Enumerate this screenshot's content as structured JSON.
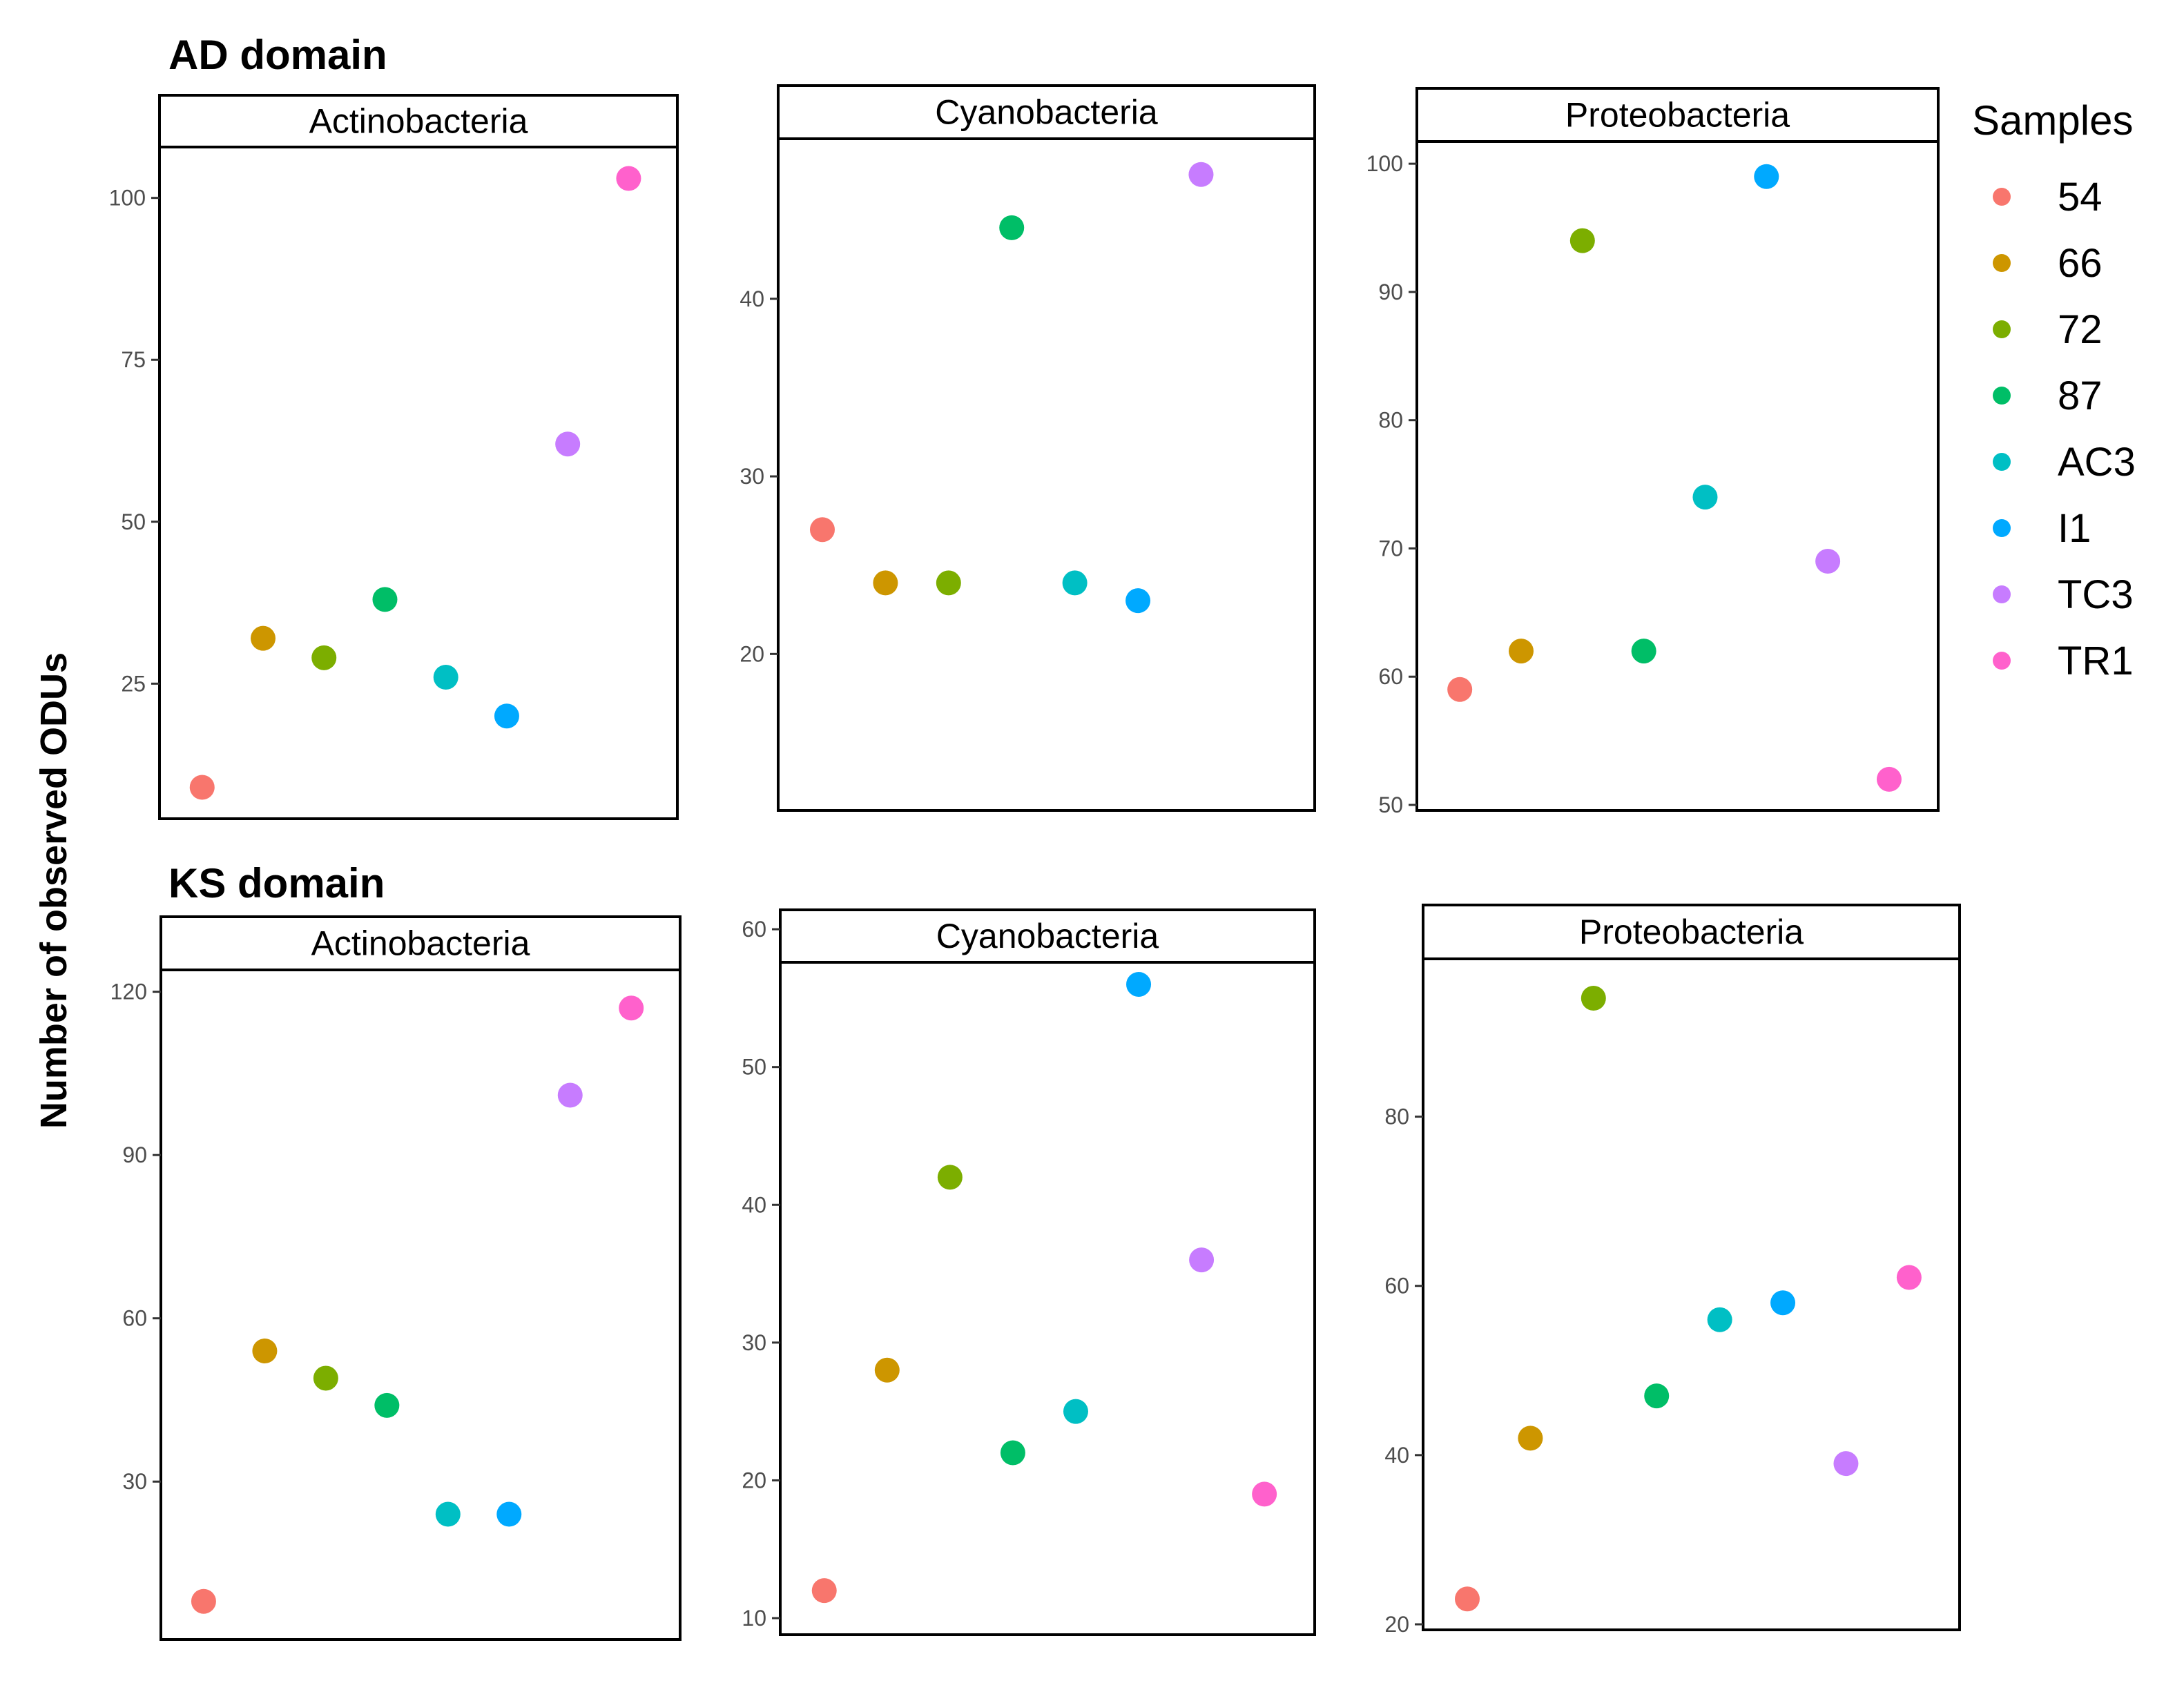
{
  "figure": {
    "y_axis_title": "Number of observed ODUs"
  },
  "legend": {
    "title": "Samples",
    "entries": [
      {
        "label": "54",
        "color": "#F8766D"
      },
      {
        "label": "66",
        "color": "#CD9600"
      },
      {
        "label": "72",
        "color": "#7CAE00"
      },
      {
        "label": "87",
        "color": "#00BE67"
      },
      {
        "label": "AC3",
        "color": "#00BFC4"
      },
      {
        "label": "I1",
        "color": "#00A9FF"
      },
      {
        "label": "TC3",
        "color": "#C77CFF"
      },
      {
        "label": "TR1",
        "color": "#FF61CC"
      }
    ]
  },
  "rows": [
    {
      "title": "AD domain"
    },
    {
      "title": "KS domain"
    }
  ],
  "chart_data": [
    {
      "type": "scatter",
      "row": "AD domain",
      "title": "Actinobacteria",
      "categories": [
        "54",
        "66",
        "72",
        "87",
        "AC3",
        "I1",
        "TC3",
        "TR1"
      ],
      "values": [
        9,
        32,
        29,
        38,
        26,
        20,
        62,
        103
      ],
      "yticks": [
        25,
        50,
        75,
        100
      ],
      "ylim": [
        5,
        107
      ],
      "xlabel": "",
      "ylabel": "Number of observed ODUs"
    },
    {
      "type": "scatter",
      "row": "AD domain",
      "title": "Cyanobacteria",
      "categories": [
        "54",
        "66",
        "72",
        "87",
        "AC3",
        "I1",
        "TC3"
      ],
      "values": [
        27,
        24,
        24,
        44,
        24,
        23,
        47
      ],
      "yticks": [
        20,
        30,
        40
      ],
      "ylim": [
        11.5,
        48.7
      ],
      "xlabel": "",
      "ylabel": "Number of observed ODUs"
    },
    {
      "type": "scatter",
      "row": "AD domain",
      "title": "Proteobacteria",
      "categories": [
        "54",
        "66",
        "72",
        "87",
        "AC3",
        "I1",
        "TC3",
        "TR1"
      ],
      "values": [
        59,
        62,
        94,
        62,
        74,
        99,
        69,
        52
      ],
      "yticks": [
        50,
        60,
        70,
        80,
        90,
        100
      ],
      "ylim": [
        50,
        101.3
      ],
      "xlabel": "",
      "ylabel": "Number of observed ODUs"
    },
    {
      "type": "scatter",
      "row": "KS domain",
      "title": "Actinobacteria",
      "categories": [
        "54",
        "66",
        "72",
        "87",
        "AC3",
        "I1",
        "TC3",
        "TR1"
      ],
      "values": [
        8,
        54,
        49,
        44,
        24,
        24,
        101,
        117
      ],
      "yticks": [
        30,
        60,
        90,
        120
      ],
      "ylim": [
        2,
        123
      ],
      "xlabel": "",
      "ylabel": "Number of observed ODUs"
    },
    {
      "type": "scatter",
      "row": "KS domain",
      "title": "Cyanobacteria",
      "categories": [
        "54",
        "66",
        "72",
        "87",
        "AC3",
        "I1",
        "TC3",
        "TR1"
      ],
      "values": [
        12,
        28,
        42,
        22,
        25,
        56,
        36,
        19
      ],
      "yticks": [
        10,
        20,
        30,
        40,
        50,
        60
      ],
      "ylim": [
        9.2,
        57.2
      ],
      "xlabel": "",
      "ylabel": "Number of observed ODUs"
    },
    {
      "type": "scatter",
      "row": "KS domain",
      "title": "Proteobacteria",
      "categories": [
        "54",
        "66",
        "72",
        "87",
        "AC3",
        "I1",
        "TC3",
        "TR1"
      ],
      "values": [
        23,
        42,
        94,
        47,
        56,
        58,
        39,
        61
      ],
      "yticks": [
        20,
        40,
        60,
        80
      ],
      "ylim": [
        20,
        98
      ],
      "xlabel": "",
      "ylabel": "Number of observed ODUs"
    }
  ]
}
